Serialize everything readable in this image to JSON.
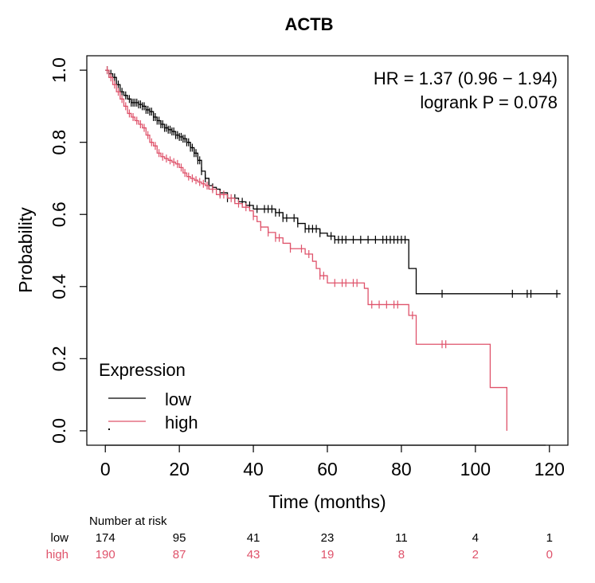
{
  "chart_data": {
    "type": "line",
    "subtype": "kaplan-meier",
    "title": "ACTB",
    "xlabel": "Time (months)",
    "ylabel": "Probability",
    "xlim": [
      -5,
      125
    ],
    "ylim": [
      -0.04,
      1.04
    ],
    "xticks": [
      0,
      20,
      40,
      60,
      80,
      100,
      120
    ],
    "yticks": [
      0.0,
      0.2,
      0.4,
      0.6,
      0.8,
      1.0
    ],
    "xtick_labels": [
      "0",
      "20",
      "40",
      "60",
      "80",
      "100",
      "120"
    ],
    "ytick_labels": [
      "0.0",
      "0.2",
      "0.4",
      "0.6",
      "0.8",
      "1.0"
    ],
    "annotations": {
      "hr": "HR = 1.37 (0.96 − 1.94)",
      "logrank": "logrank P = 0.078"
    },
    "legend": {
      "title": "Expression",
      "position": "bottom-left",
      "entries": [
        "low",
        "high"
      ]
    },
    "series": [
      {
        "name": "low",
        "color": "#000000",
        "steps": [
          [
            0,
            1.0
          ],
          [
            1,
            0.99
          ],
          [
            2,
            0.98
          ],
          [
            3,
            0.96
          ],
          [
            4,
            0.94
          ],
          [
            5,
            0.93
          ],
          [
            6,
            0.92
          ],
          [
            7,
            0.91
          ],
          [
            9,
            0.905
          ],
          [
            10,
            0.9
          ],
          [
            11,
            0.89
          ],
          [
            12,
            0.885
          ],
          [
            13,
            0.87
          ],
          [
            14,
            0.86
          ],
          [
            15,
            0.85
          ],
          [
            16,
            0.84
          ],
          [
            17,
            0.835
          ],
          [
            18,
            0.83
          ],
          [
            19,
            0.82
          ],
          [
            20,
            0.815
          ],
          [
            21,
            0.81
          ],
          [
            22,
            0.8
          ],
          [
            23,
            0.785
          ],
          [
            24,
            0.77
          ],
          [
            25,
            0.75
          ],
          [
            26,
            0.72
          ],
          [
            27,
            0.7
          ],
          [
            28,
            0.68
          ],
          [
            29,
            0.675
          ],
          [
            30,
            0.67
          ],
          [
            31,
            0.66
          ],
          [
            33,
            0.645
          ],
          [
            36,
            0.635
          ],
          [
            38,
            0.625
          ],
          [
            40,
            0.615
          ],
          [
            46,
            0.605
          ],
          [
            48,
            0.59
          ],
          [
            52,
            0.575
          ],
          [
            54,
            0.56
          ],
          [
            58,
            0.548
          ],
          [
            60,
            0.54
          ],
          [
            62,
            0.53
          ],
          [
            82,
            0.45
          ],
          [
            84,
            0.38
          ],
          [
            123,
            0.38
          ]
        ],
        "censored": [
          0.5,
          1,
          1.5,
          2.5,
          3.5,
          4.5,
          5.5,
          6.5,
          7,
          7.5,
          8,
          8.5,
          9,
          9.5,
          10,
          10.5,
          11,
          11.5,
          12,
          12.5,
          13,
          13.5,
          14,
          14.5,
          15,
          15.5,
          16,
          16.5,
          17,
          17.5,
          18,
          18.5,
          19,
          19.5,
          20,
          20.5,
          21,
          21.5,
          22,
          22.5,
          23,
          23.5,
          24,
          24.5,
          25,
          25.5,
          26,
          27,
          28,
          29,
          31,
          33,
          35,
          37,
          39,
          41,
          43,
          44,
          45,
          46,
          47,
          48,
          49,
          51,
          52,
          54,
          55,
          56,
          57,
          58,
          61,
          62,
          63,
          64,
          65,
          67,
          69,
          71,
          73,
          75,
          76,
          77,
          78,
          79,
          80,
          81,
          91,
          110,
          114,
          115,
          122
        ]
      },
      {
        "name": "high",
        "color": "#DF536B",
        "steps": [
          [
            0,
            1.0
          ],
          [
            1,
            0.98
          ],
          [
            2,
            0.96
          ],
          [
            3,
            0.94
          ],
          [
            4,
            0.92
          ],
          [
            5,
            0.9
          ],
          [
            6,
            0.88
          ],
          [
            7,
            0.87
          ],
          [
            8,
            0.86
          ],
          [
            9,
            0.85
          ],
          [
            10,
            0.84
          ],
          [
            11,
            0.82
          ],
          [
            12,
            0.8
          ],
          [
            13,
            0.79
          ],
          [
            14,
            0.77
          ],
          [
            15,
            0.76
          ],
          [
            16,
            0.755
          ],
          [
            17,
            0.75
          ],
          [
            18,
            0.745
          ],
          [
            19,
            0.74
          ],
          [
            20,
            0.73
          ],
          [
            21,
            0.715
          ],
          [
            22,
            0.705
          ],
          [
            23,
            0.7
          ],
          [
            24,
            0.695
          ],
          [
            25,
            0.69
          ],
          [
            26,
            0.685
          ],
          [
            27,
            0.68
          ],
          [
            28,
            0.67
          ],
          [
            30,
            0.655
          ],
          [
            33,
            0.645
          ],
          [
            35,
            0.63
          ],
          [
            37,
            0.62
          ],
          [
            39,
            0.61
          ],
          [
            40,
            0.595
          ],
          [
            41,
            0.58
          ],
          [
            42,
            0.565
          ],
          [
            44,
            0.55
          ],
          [
            46,
            0.535
          ],
          [
            48,
            0.52
          ],
          [
            50,
            0.505
          ],
          [
            54,
            0.49
          ],
          [
            56,
            0.47
          ],
          [
            57,
            0.45
          ],
          [
            58,
            0.43
          ],
          [
            60,
            0.41
          ],
          [
            70,
            0.395
          ],
          [
            71,
            0.35
          ],
          [
            82,
            0.32
          ],
          [
            84,
            0.24
          ],
          [
            104,
            0.12
          ],
          [
            108.5,
            0.0
          ]
        ],
        "censored": [
          0.5,
          1.5,
          2.5,
          3.5,
          4.5,
          5.5,
          6.5,
          7.5,
          8.5,
          9.5,
          10.5,
          11.5,
          12.5,
          13.5,
          14.5,
          15.5,
          16.5,
          17.5,
          18.5,
          19.5,
          20.5,
          21.5,
          22.5,
          23.5,
          24.5,
          25.5,
          26.5,
          27.5,
          29,
          31,
          32,
          34,
          36,
          38,
          40,
          42,
          44,
          46,
          47,
          50,
          53,
          55,
          58,
          59,
          62,
          64,
          65,
          67,
          68,
          72,
          74,
          76,
          78,
          79,
          83,
          91,
          92
        ]
      }
    ],
    "risk_table": {
      "header": "Number at risk",
      "rows": [
        {
          "label": "low",
          "color": "#000000",
          "values": [
            "174",
            "95",
            "41",
            "23",
            "11",
            "4",
            "1"
          ]
        },
        {
          "label": "high",
          "color": "#DF536B",
          "values": [
            "190",
            "87",
            "43",
            "19",
            "8",
            "2",
            "0"
          ]
        }
      ]
    }
  }
}
